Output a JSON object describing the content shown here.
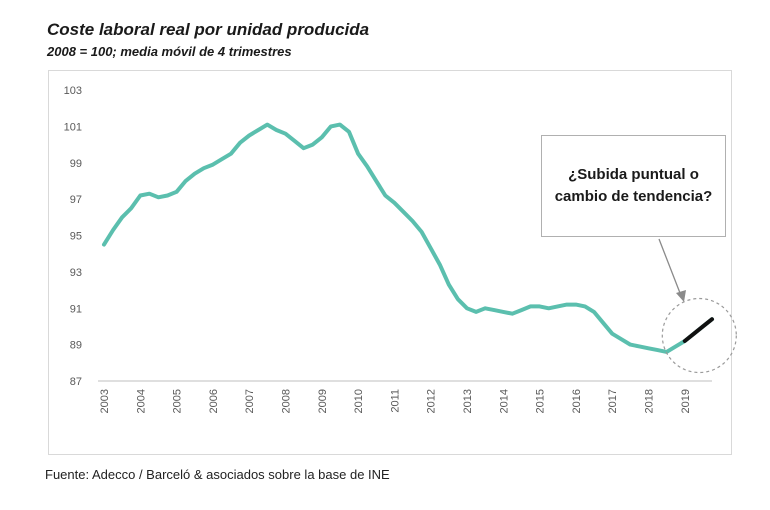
{
  "title": "Coste laboral real por unidad producida",
  "subtitle": "2008 = 100; media móvil de 4 trimestres",
  "source": "Fuente: Adecco / Barceló & asociados sobre la base de INE",
  "callout": "¿Subida puntual o cambio de tendencia?",
  "colors": {
    "line": "#5bbfae",
    "highlight": "#111111",
    "axis": "#bfbfbf",
    "text": "#595959"
  },
  "chart_data": {
    "type": "line",
    "title": "Coste laboral real por unidad producida",
    "subtitle": "2008 = 100; media móvil de 4 trimestres",
    "xlabel": "",
    "ylabel": "",
    "ylim": [
      87,
      103
    ],
    "yticks": [
      "87",
      "89",
      "91",
      "93",
      "95",
      "97",
      "99",
      "101",
      "103"
    ],
    "xticks": [
      "2003",
      "2004",
      "2005",
      "2006",
      "2007",
      "2008",
      "2009",
      "2010",
      "2011",
      "2012",
      "2013",
      "2014",
      "2015",
      "2016",
      "2017",
      "2018",
      "2019"
    ],
    "grid": false,
    "x": [
      2003.0,
      2003.25,
      2003.5,
      2003.75,
      2004.0,
      2004.25,
      2004.5,
      2004.75,
      2005.0,
      2005.25,
      2005.5,
      2005.75,
      2006.0,
      2006.25,
      2006.5,
      2006.75,
      2007.0,
      2007.25,
      2007.5,
      2007.75,
      2008.0,
      2008.25,
      2008.5,
      2008.75,
      2009.0,
      2009.25,
      2009.5,
      2009.75,
      2010.0,
      2010.25,
      2010.5,
      2010.75,
      2011.0,
      2011.25,
      2011.5,
      2011.75,
      2012.0,
      2012.25,
      2012.5,
      2012.75,
      2013.0,
      2013.25,
      2013.5,
      2013.75,
      2014.0,
      2014.25,
      2014.5,
      2014.75,
      2015.0,
      2015.25,
      2015.5,
      2015.75,
      2016.0,
      2016.25,
      2016.5,
      2016.75,
      2017.0,
      2017.25,
      2017.5,
      2017.75,
      2018.0,
      2018.25,
      2018.5,
      2018.75,
      2019.0,
      2019.25,
      2019.5,
      2019.75
    ],
    "series": [
      {
        "values": [
          94.5,
          95.3,
          96.0,
          96.5,
          97.2,
          97.3,
          97.1,
          97.2,
          97.4,
          98.0,
          98.4,
          98.7,
          98.9,
          99.2,
          99.5,
          100.1,
          100.5,
          100.8,
          101.1,
          100.8,
          100.6,
          100.2,
          99.8,
          100.0,
          100.4,
          101.0,
          101.1,
          100.7,
          99.5,
          98.8,
          98.0,
          97.2,
          96.8,
          96.3,
          95.8,
          95.2,
          94.3,
          93.4,
          92.3,
          91.5,
          91.0,
          90.8,
          91.0,
          90.9,
          90.8,
          90.7,
          90.9,
          91.1,
          91.1,
          91.0,
          91.1,
          91.2,
          91.2,
          91.1,
          90.8,
          90.2,
          89.6,
          89.3,
          89.0,
          88.9,
          88.8,
          88.7,
          88.6,
          88.9,
          89.2,
          89.6,
          90.0,
          90.4
        ]
      }
    ],
    "highlight_from_x": 2019.0
  }
}
